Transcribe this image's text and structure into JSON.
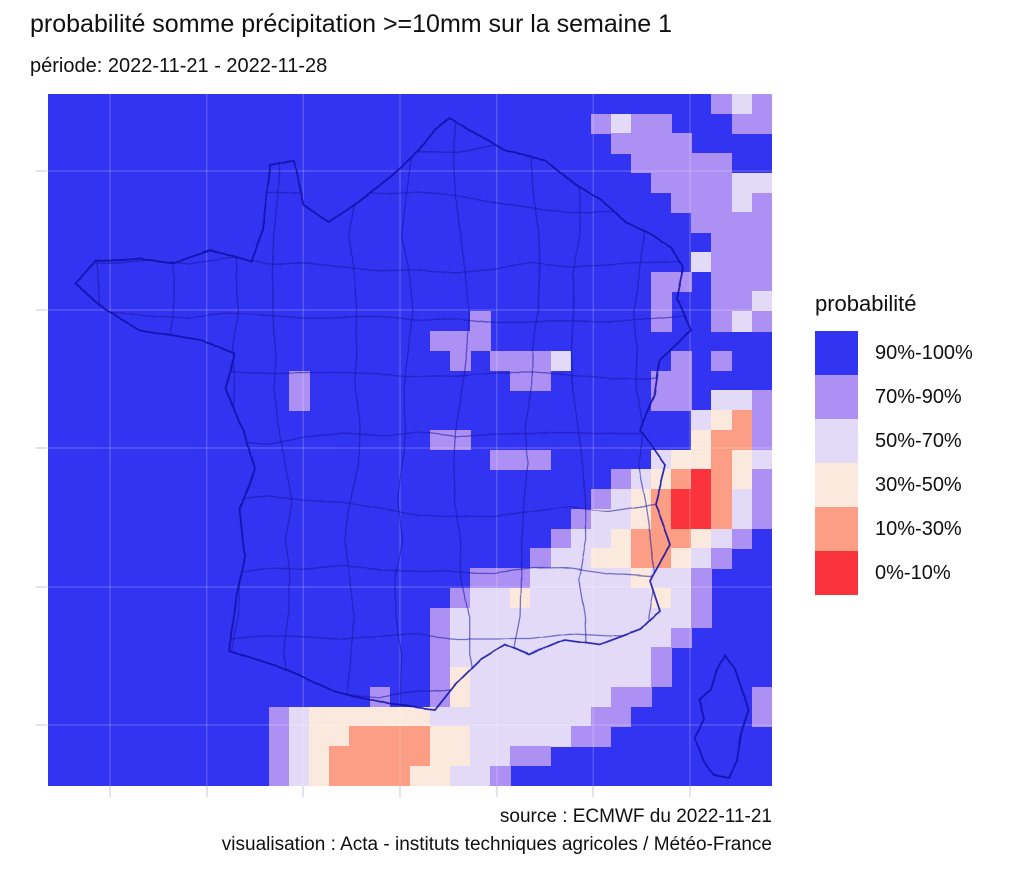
{
  "title": "probabilité somme précipitation >=10mm sur la semaine 1",
  "subtitle": "période: 2022-11-21 - 2022-11-28",
  "captions": {
    "source": "source : ECMWF du 2022-11-21",
    "visualisation": "visualisation : Acta - instituts techniques agricoles / Météo-France"
  },
  "legend": {
    "title": "probabilité"
  },
  "chart_data": {
    "type": "heatmap",
    "title": "probabilité somme précipitation >=10mm sur la semaine 1",
    "period": "2022-11-21 - 2022-11-28",
    "map_region": "France métropolitaine avec contours des départements, et Corse",
    "legend_title": "probabilité",
    "legend_position": "right",
    "bins": [
      {
        "code": "B",
        "label": "90%-100%",
        "color": "#3333F2"
      },
      {
        "code": "P",
        "label": "70%-90%",
        "color": "#AD90F4"
      },
      {
        "code": "L",
        "label": "50%-70%",
        "color": "#E3DAF8"
      },
      {
        "code": "O",
        "label": "30%-50%",
        "color": "#FCE9DE"
      },
      {
        "code": "S",
        "label": "10%-30%",
        "color": "#FB9E85"
      },
      {
        "code": "R",
        "label": "0%-10%",
        "color": "#FA333D"
      }
    ],
    "grid": {
      "cols": 36,
      "rows": 35,
      "background_code": "B",
      "note": "sparse rows: 'colStart-colEnd' + bin code; all other cells are background (90%-100% blue)",
      "cell_rows": [
        "33P,34L,35P",
        "27P,28L,29-30P,34-35P",
        "28-31P",
        "29-33P",
        "30-33P,34-35L",
        "31-33P,34L,35P",
        "32-35P",
        "33-35P",
        "32L,33-35P",
        "30-31P,33-35P",
        "30P,33-34P,35L",
        "21P,30P,33P,34L,35P",
        "19-21P",
        "20P,22-24P,25L,31P,33P",
        "12P,23-24P,30-31P",
        "12P,30-31P,33-34L,35P",
        "32L,33O,34S,35P",
        "19-20P,32O,33-34S,35P",
        "22-24P,30L,31-32O,33S,34O,35L",
        "28P,29L,30O,31S,32R,33S,34O,35P",
        "27P,28L,29O,30S,31-32R,33S,34L,35P",
        "26P,27-28L,29O,30S,31-32R,33S,34L,35P",
        "25P,26-27L,28O,29-31S,32O,33L,34P",
        "24P,25-26L,27-28O,29-30S,31O,32L,33P",
        "21-23P,24-28L,29O,30-31L,32P",
        "20P,21-22L,23O,24-29L,30O,31L,32P",
        "19P,20-31L,32P",
        "19P,20-30L,31P",
        "19P,20-29L,30P",
        "19P,20O,21-29L,30P",
        "16P,19P,20O,21-27L,28-29P,35P",
        "11P,12L,13-18O,19-26L,27-28P,35P",
        "11P,12L,13-14O,15-18S,19-20O,21-25L,26-27P",
        "11P,12L,13O,14-18S,19-20O,21-22L,23-24P",
        "11P,12L,13O,14-17S,18-19O,20-21L,22P"
      ]
    },
    "graticule": {
      "vertical_x_panel": [
        62,
        158.7,
        255.3,
        352,
        448.7,
        545.3,
        642
      ],
      "horizontal_y_panel": [
        77,
        216,
        354,
        493,
        631
      ]
    }
  }
}
